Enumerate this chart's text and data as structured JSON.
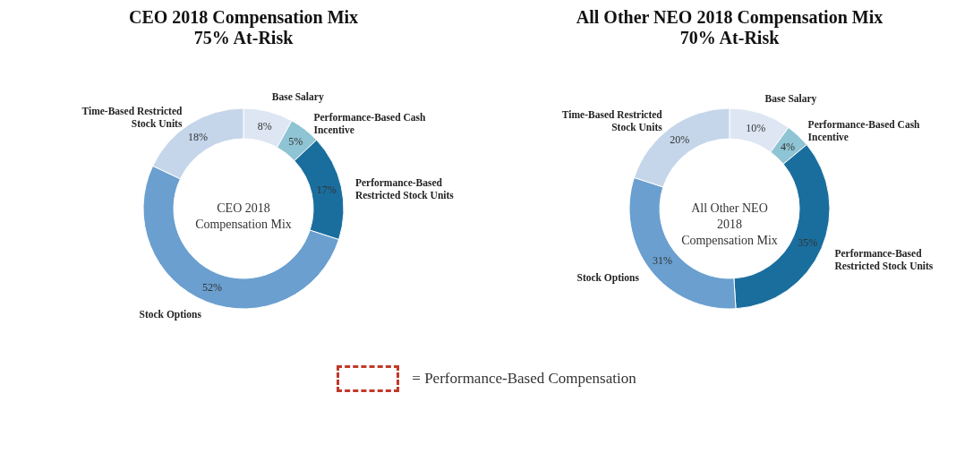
{
  "chart_data": [
    {
      "type": "donut",
      "title": "CEO 2018 Compensation Mix",
      "subtitle": "75% At-Risk",
      "categories": [
        "Base Salary",
        "Performance-Based Cash Incentive",
        "Performance-Based Restricted Stock Units",
        "Stock Options",
        "Time-Based Restricted Stock Units"
      ],
      "values": [
        8,
        5,
        17,
        52,
        18
      ],
      "value_labels": [
        "8%",
        "5%",
        "17%",
        "52%",
        "18%"
      ],
      "colors": [
        "#dde6f2",
        "#8fc4d4",
        "#1a6e9e",
        "#6a9fcf",
        "#c5d6ea"
      ],
      "annotations": [
        "CEO 2018 Compensation Mix",
        "= Performance-Based Compensation"
      ]
    },
    {
      "type": "donut",
      "title": "All Other NEO 2018 Compensation Mix",
      "subtitle": "70% At-Risk",
      "categories": [
        "Base Salary",
        "Performance-Based Cash Incentive",
        "Performance-Based Restricted Stock Units",
        "Stock Options",
        "Time-Based Restricted Stock Units"
      ],
      "values": [
        10,
        4,
        35,
        31,
        20
      ],
      "value_labels": [
        "10%",
        "4%",
        "35%",
        "31%",
        "20%"
      ],
      "colors": [
        "#dde6f2",
        "#8fc4d4",
        "#1a6e9e",
        "#6a9fcf",
        "#c5d6ea"
      ],
      "annotations": [
        "All Other NEO 2018 Compensation Mix"
      ]
    }
  ]
}
